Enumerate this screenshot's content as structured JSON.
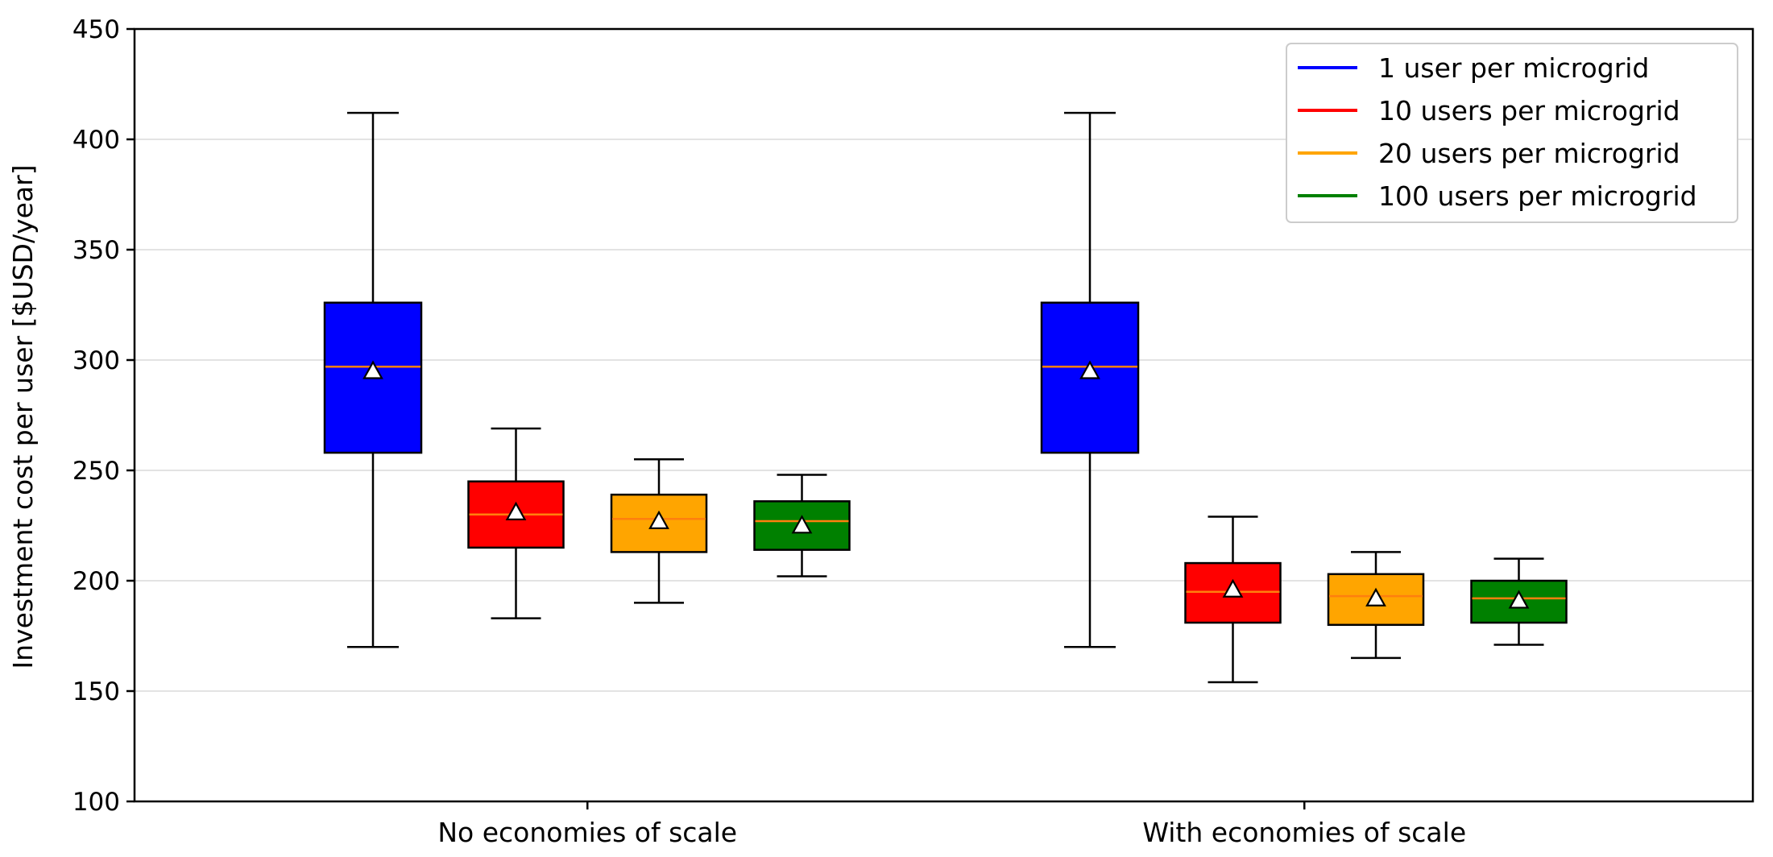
{
  "chart_data": {
    "type": "boxplot",
    "title": "",
    "xlabel": "",
    "ylabel": "Investment cost per user [$USD/year]",
    "ylim": [
      100,
      450
    ],
    "yticks": [
      100,
      150,
      200,
      250,
      300,
      350,
      400,
      450
    ],
    "grid": "horizontal",
    "legend_position": "top-right",
    "categories": [
      "No economies of scale",
      "With economies of scale"
    ],
    "series": [
      {
        "name": "1 user per microgrid",
        "color": "#0000ff",
        "boxes": [
          {
            "whisker_low": 170,
            "q1": 258,
            "median": 297,
            "q3": 326,
            "whisker_high": 412,
            "mean": 295
          },
          {
            "whisker_low": 170,
            "q1": 258,
            "median": 297,
            "q3": 326,
            "whisker_high": 412,
            "mean": 295
          }
        ]
      },
      {
        "name": "10 users per microgrid",
        "color": "#ff0000",
        "boxes": [
          {
            "whisker_low": 183,
            "q1": 215,
            "median": 230,
            "q3": 245,
            "whisker_high": 269,
            "mean": 231
          },
          {
            "whisker_low": 154,
            "q1": 181,
            "median": 195,
            "q3": 208,
            "whisker_high": 229,
            "mean": 196
          }
        ]
      },
      {
        "name": "20 users per microgrid",
        "color": "#ffa500",
        "boxes": [
          {
            "whisker_low": 190,
            "q1": 213,
            "median": 228,
            "q3": 239,
            "whisker_high": 255,
            "mean": 227
          },
          {
            "whisker_low": 165,
            "q1": 180,
            "median": 193,
            "q3": 203,
            "whisker_high": 213,
            "mean": 192
          }
        ]
      },
      {
        "name": "100 users per microgrid",
        "color": "#008000",
        "boxes": [
          {
            "whisker_low": 202,
            "q1": 214,
            "median": 227,
            "q3": 236,
            "whisker_high": 248,
            "mean": 225
          },
          {
            "whisker_low": 171,
            "q1": 181,
            "median": 192,
            "q3": 200,
            "whisker_high": 210,
            "mean": 191
          }
        ]
      }
    ],
    "median_line_color": "#ff7f0e",
    "mean_marker": "triangle"
  }
}
